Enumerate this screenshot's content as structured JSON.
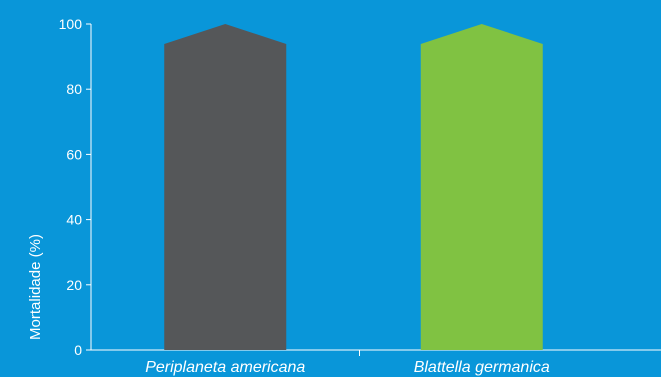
{
  "colors": {
    "background": "#0996d9",
    "axis": "#ffffff",
    "text": "#ffffff"
  },
  "chart_data": {
    "type": "bar",
    "title": "",
    "xlabel": "",
    "ylabel": "Mortalidade (%)",
    "ylim": [
      0,
      100
    ],
    "yticks": [
      "0",
      "20",
      "40",
      "60",
      "80",
      "100"
    ],
    "grid": false,
    "legend": "none",
    "categories": [
      "Periplaneta americana",
      "Blattella germanica"
    ],
    "values": [
      100,
      100
    ],
    "bar_colors": [
      "#555759",
      "#80c242"
    ]
  }
}
